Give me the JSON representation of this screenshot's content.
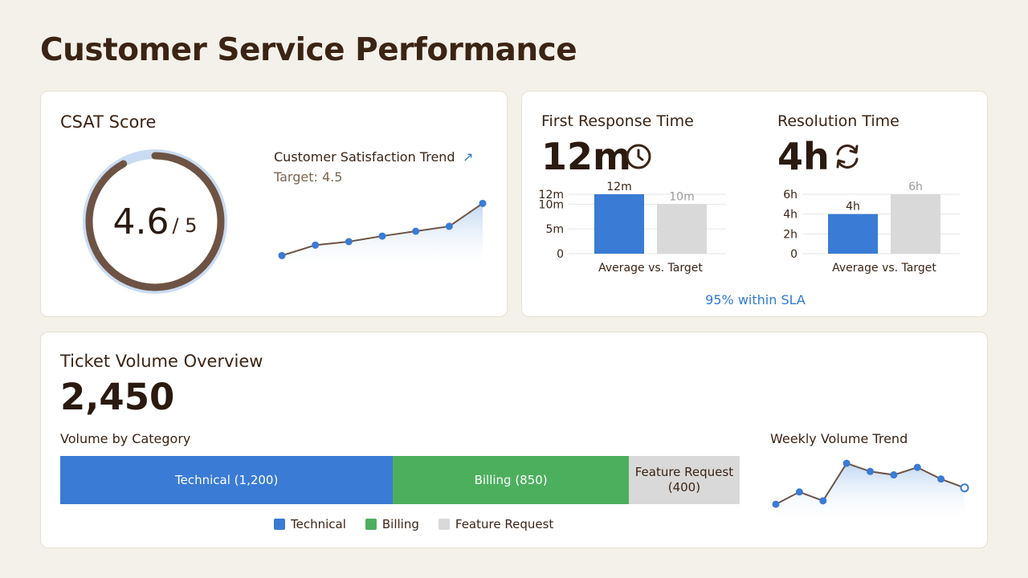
{
  "page": {
    "title": "Customer Service Performance"
  },
  "colors": {
    "blue": "#3a7bd5",
    "green": "#4caf5e",
    "gray": "#d9d9d9",
    "brown": "#6e5344",
    "gauge_track": "#c9dcf3",
    "sla": "#2f7ad4"
  },
  "csat": {
    "title": "CSAT Score",
    "value": "4.6",
    "max_label": "/ 5",
    "trend_title": "Customer Satisfaction Trend",
    "trend_icon": "trend-up-arrow-icon",
    "trend_arrow": "↗",
    "target_label": "Target: 4.5"
  },
  "first_response": {
    "title": "First Response Time",
    "value": "12m",
    "icon": "clock-icon",
    "xlabel": "Average vs. Target"
  },
  "resolution": {
    "title": "Resolution Time",
    "value": "4h",
    "icon": "refresh-icon",
    "xlabel": "Average vs. Target"
  },
  "sla_note": "95% within SLA",
  "tickets": {
    "title": "Ticket Volume Overview",
    "total": "2,450",
    "category_title": "Volume by Category",
    "weekly_title": "Weekly Volume Trend"
  },
  "chart_data": [
    {
      "id": "csat_gauge",
      "type": "gauge",
      "value": 4.6,
      "max": 5
    },
    {
      "id": "csat_trend",
      "type": "area",
      "title": "Customer Satisfaction Trend",
      "x": [
        1,
        2,
        3,
        4,
        5,
        6,
        7
      ],
      "values": [
        4.1,
        4.25,
        4.3,
        4.38,
        4.45,
        4.52,
        4.85
      ],
      "ylim": [
        4.0,
        4.9
      ],
      "grid": false
    },
    {
      "id": "first_response",
      "type": "bar",
      "categories": [
        "Average",
        "Target"
      ],
      "values": [
        12,
        10
      ],
      "data_labels": [
        "12m",
        "10m"
      ],
      "yticks": [
        "0",
        "5m",
        "10m",
        "12m"
      ],
      "ytick_values": [
        0,
        5,
        10,
        12
      ],
      "ylim": [
        0,
        12
      ],
      "xlabel": "Average vs. Target",
      "grid": true
    },
    {
      "id": "resolution",
      "type": "bar",
      "categories": [
        "Average",
        "Target"
      ],
      "values": [
        4,
        6
      ],
      "data_labels": [
        "4h",
        "6h"
      ],
      "yticks": [
        "0",
        "2h",
        "4h",
        "6h"
      ],
      "ytick_values": [
        0,
        2,
        4,
        6
      ],
      "ylim": [
        0,
        6
      ],
      "xlabel": "Average vs. Target",
      "grid": true
    },
    {
      "id": "volume_by_category",
      "type": "bar",
      "orientation": "horizontal-stacked",
      "categories": [
        "Technical",
        "Billing",
        "Feature Request"
      ],
      "values": [
        1200,
        850,
        400
      ],
      "segment_labels": [
        "Technical (1,200)",
        "Billing (850)",
        "Feature Request (400)"
      ],
      "legend": [
        "Technical",
        "Billing",
        "Feature Request"
      ],
      "legend_position": "bottom"
    },
    {
      "id": "weekly_volume",
      "type": "area",
      "title": "Weekly Volume Trend",
      "x": [
        1,
        2,
        3,
        4,
        5,
        6,
        7,
        8,
        9
      ],
      "values": [
        520,
        610,
        545,
        820,
        760,
        735,
        790,
        705,
        640
      ],
      "ylim": [
        450,
        850
      ],
      "grid": false
    }
  ]
}
